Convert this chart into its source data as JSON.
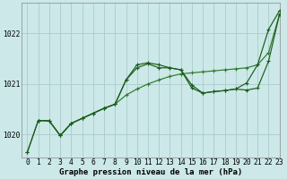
{
  "title": "Graphe pression niveau de la mer (hPa)",
  "bg_color": "#cce8e8",
  "grid_color": "#aacccc",
  "line_color_dark": "#1a5c1a",
  "line_color_med": "#2d7a2d",
  "xlim": [
    -0.5,
    23
  ],
  "ylim": [
    1019.55,
    1022.6
  ],
  "yticks": [
    1020,
    1021,
    1022
  ],
  "xticks": [
    0,
    1,
    2,
    3,
    4,
    5,
    6,
    7,
    8,
    9,
    10,
    11,
    12,
    13,
    14,
    15,
    16,
    17,
    18,
    19,
    20,
    21,
    22,
    23
  ],
  "series1_x": [
    0,
    1,
    2,
    3,
    4,
    5,
    6,
    7,
    8,
    9,
    10,
    11,
    12,
    13,
    14,
    15,
    16,
    17,
    18,
    19,
    20,
    21,
    22,
    23
  ],
  "series1_y": [
    1019.65,
    1020.28,
    1020.27,
    1019.98,
    1020.22,
    1020.32,
    1020.42,
    1020.52,
    1020.6,
    1021.08,
    1021.32,
    1021.4,
    1021.32,
    1021.32,
    1021.28,
    1020.92,
    1020.82,
    1020.85,
    1020.87,
    1020.9,
    1020.88,
    1020.92,
    1021.45,
    1022.38
  ],
  "series2_x": [
    0,
    1,
    2,
    3,
    4,
    5,
    6,
    7,
    8,
    9,
    10,
    11,
    12,
    13,
    14,
    15,
    16,
    17,
    18,
    19,
    20,
    21,
    22,
    23
  ],
  "series2_y": [
    1019.65,
    1020.28,
    1020.27,
    1019.98,
    1020.22,
    1020.32,
    1020.42,
    1020.52,
    1020.6,
    1020.78,
    1020.9,
    1021.0,
    1021.08,
    1021.15,
    1021.2,
    1021.22,
    1021.24,
    1021.26,
    1021.28,
    1021.3,
    1021.32,
    1021.38,
    1021.62,
    1022.38
  ],
  "series3_x": [
    1,
    2,
    3,
    4,
    5,
    6,
    7,
    8,
    9,
    10,
    11,
    12,
    13,
    14,
    15,
    16,
    17,
    18,
    19,
    20,
    21,
    22,
    23
  ],
  "series3_y": [
    1020.28,
    1020.27,
    1019.98,
    1020.22,
    1020.32,
    1020.42,
    1020.52,
    1020.6,
    1021.08,
    1021.38,
    1021.42,
    1021.38,
    1021.32,
    1021.28,
    1020.98,
    1020.82,
    1020.85,
    1020.87,
    1020.9,
    1021.02,
    1021.38,
    1022.08,
    1022.45
  ],
  "xlabel_fontsize": 6.5,
  "tick_fontsize": 5.8
}
